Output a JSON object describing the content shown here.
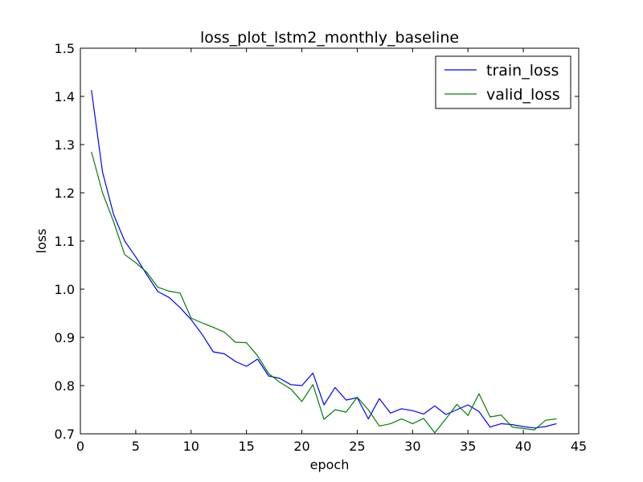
{
  "chart_data": {
    "type": "line",
    "title": "loss_plot_lstm2_monthly_baseline",
    "xlabel": "epoch",
    "ylabel": "loss",
    "xlim": [
      0,
      45
    ],
    "ylim": [
      0.7,
      1.5
    ],
    "xticks": [
      0,
      5,
      10,
      15,
      20,
      25,
      30,
      35,
      40,
      45
    ],
    "yticks": [
      0.7,
      0.8,
      0.9,
      1.0,
      1.1,
      1.2,
      1.3,
      1.4,
      1.5
    ],
    "ytick_labels": [
      "0.7",
      "0.8",
      "0.9",
      "1.0",
      "1.1",
      "1.2",
      "1.3",
      "1.4",
      "1.5"
    ],
    "grid": false,
    "legend_position": "top-right",
    "x": [
      1,
      2,
      3,
      4,
      5,
      6,
      7,
      8,
      9,
      10,
      11,
      12,
      13,
      14,
      15,
      16,
      17,
      18,
      19,
      20,
      21,
      22,
      23,
      24,
      25,
      26,
      27,
      28,
      29,
      30,
      31,
      32,
      33,
      34,
      35,
      36,
      37,
      38,
      39,
      40,
      41,
      42,
      43
    ],
    "series": [
      {
        "name": "train_loss",
        "color": "#0000ff",
        "values": [
          1.413,
          1.243,
          1.155,
          1.1,
          1.067,
          1.03,
          0.995,
          0.983,
          0.962,
          0.937,
          0.906,
          0.87,
          0.866,
          0.85,
          0.84,
          0.855,
          0.82,
          0.815,
          0.802,
          0.8,
          0.826,
          0.76,
          0.796,
          0.77,
          0.775,
          0.731,
          0.773,
          0.743,
          0.752,
          0.748,
          0.741,
          0.758,
          0.74,
          0.75,
          0.76,
          0.746,
          0.714,
          0.721,
          0.719,
          0.715,
          0.712,
          0.715,
          0.721
        ]
      },
      {
        "name": "valid_loss",
        "color": "#008000",
        "values": [
          1.285,
          1.2,
          1.14,
          1.072,
          1.055,
          1.035,
          1.004,
          0.996,
          0.992,
          0.94,
          0.93,
          0.921,
          0.911,
          0.89,
          0.889,
          0.862,
          0.825,
          0.807,
          0.793,
          0.767,
          0.802,
          0.73,
          0.75,
          0.745,
          0.776,
          0.75,
          0.716,
          0.721,
          0.731,
          0.721,
          0.732,
          0.702,
          0.731,
          0.761,
          0.738,
          0.783,
          0.735,
          0.739,
          0.714,
          0.711,
          0.708,
          0.728,
          0.731
        ]
      }
    ]
  }
}
